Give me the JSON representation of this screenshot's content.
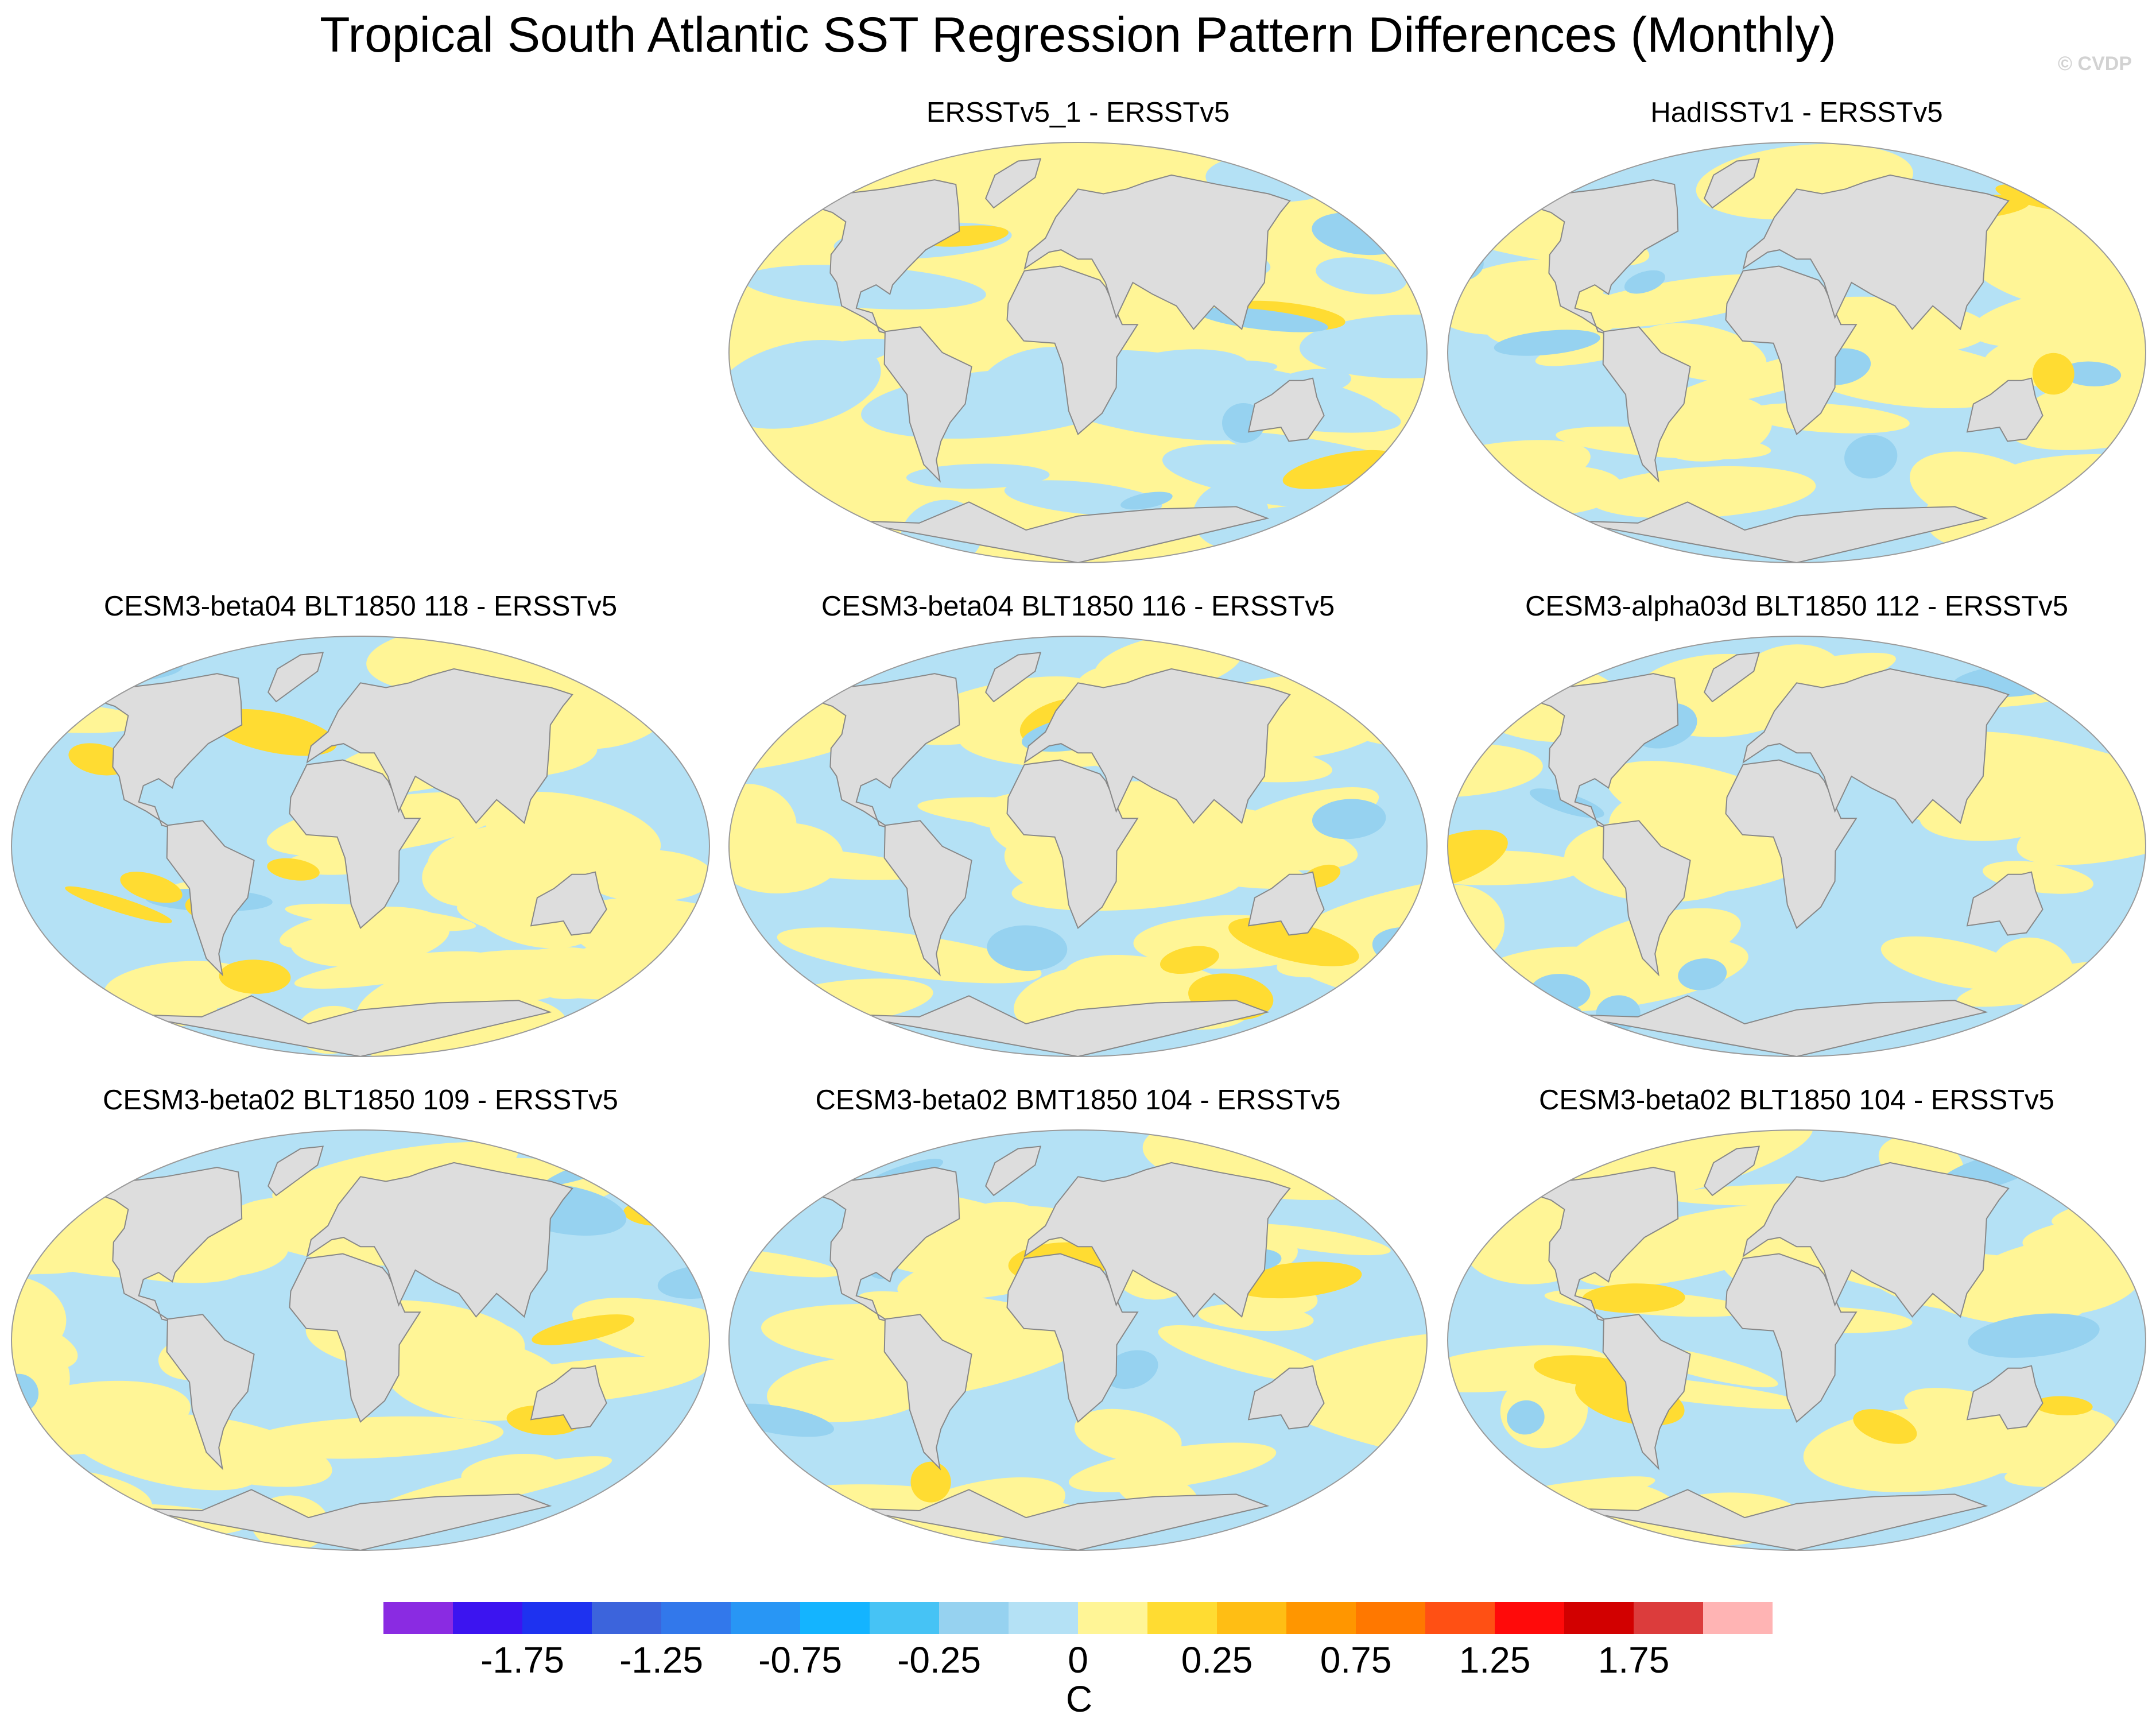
{
  "figure": {
    "title": "Tropical South Atlantic SST Regression Pattern Differences (Monthly)",
    "credit": "© CVDP",
    "units": "C"
  },
  "panels": [
    {
      "title": "ERSSTv5_1 - ERSSTv5",
      "bias": "yellow",
      "seed": 11
    },
    {
      "title": "HadISSTv1 - ERSSTv5",
      "bias": "blue",
      "seed": 23
    },
    {
      "title": "CESM3-beta04 BLT1850 118 - ERSSTv5",
      "bias": "mixed",
      "seed": 37
    },
    {
      "title": "CESM3-beta04 BLT1850 116 - ERSSTv5",
      "bias": "mixed",
      "seed": 41
    },
    {
      "title": "CESM3-alpha03d BLT1850 112 - ERSSTv5",
      "bias": "blue",
      "seed": 53
    },
    {
      "title": "CESM3-beta02 BLT1850 109 - ERSSTv5",
      "bias": "mixed",
      "seed": 67
    },
    {
      "title": "CESM3-beta02 BMT1850 104 - ERSSTv5",
      "bias": "mixed",
      "seed": 71
    },
    {
      "title": "CESM3-beta02 BLT1850 104 - ERSSTv5",
      "bias": "mixed",
      "seed": 83
    }
  ],
  "colorbar": {
    "colors": [
      "#8a2be2",
      "#3c14f0",
      "#1e32f0",
      "#3c64dc",
      "#3278eb",
      "#2896f5",
      "#14b4ff",
      "#46c3f5",
      "#96d2f0",
      "#b4e1f5",
      "#fff596",
      "#ffdc32",
      "#ffbe14",
      "#ff9600",
      "#ff7800",
      "#ff5014",
      "#ff0a0a",
      "#d20000",
      "#dc3c3c",
      "#ffb4b4"
    ],
    "labels": [
      "-1.75",
      "-1.25",
      "-0.75",
      "-0.25",
      "0",
      "0.25",
      "0.75",
      "1.25",
      "1.75"
    ]
  },
  "map_colors": {
    "land": "#dddddd",
    "ocean_light_blue": "#b4e1f5",
    "ocean_mid_blue": "#96d2f0",
    "ocean_yellow": "#fff596",
    "ocean_gold": "#ffdc32",
    "coast": "#888888"
  }
}
